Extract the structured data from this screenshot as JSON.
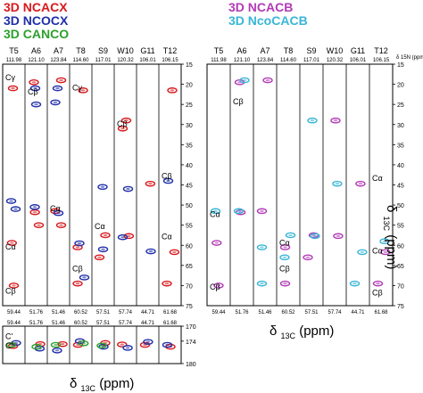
{
  "legend_left": [
    {
      "label": "3D NCACX",
      "color": "#d7191c"
    },
    {
      "label": "3D NCOCX",
      "color": "#1f2fa8"
    },
    {
      "label": "3D CANCO",
      "color": "#2ca02c"
    }
  ],
  "legend_right": [
    {
      "label": "3D NCACB",
      "color": "#b23ab6"
    },
    {
      "label": "3D NcoCACB",
      "color": "#38b6d6"
    }
  ],
  "xlabel_left": {
    "delta": "δ",
    "sub": "13C",
    "unit": "(ppm)"
  },
  "xlabel_right": {
    "delta": "δ",
    "sub": "13C",
    "unit": "(ppm)"
  },
  "ylabel_right": {
    "delta": "δ",
    "sub": "13C",
    "unit": "(ppm)"
  },
  "chart_data": [
    {
      "type": "scatter",
      "panel": "left-aliphatic",
      "strips": [
        {
          "residue": "T5",
          "n_shift": "111.98",
          "ca_shift": "59.44"
        },
        {
          "residue": "A6",
          "n_shift": "121.10",
          "ca_shift": "51.76"
        },
        {
          "residue": "A7",
          "n_shift": "123.84",
          "ca_shift": "51.46"
        },
        {
          "residue": "T8",
          "n_shift": "114.60",
          "ca_shift": "60.52"
        },
        {
          "residue": "S9",
          "n_shift": "117.01",
          "ca_shift": "57.51"
        },
        {
          "residue": "W10",
          "n_shift": "120.32",
          "ca_shift": "57.74"
        },
        {
          "residue": "G11",
          "n_shift": "106.01",
          "ca_shift": "44.71"
        },
        {
          "residue": "T12",
          "n_shift": "106.15",
          "ca_shift": "61.68"
        }
      ],
      "ylim": [
        15,
        75
      ],
      "yticks": [
        15,
        20,
        25,
        30,
        35,
        40,
        45,
        50,
        55,
        60,
        65,
        70,
        75
      ],
      "annotations": [
        {
          "strip": 0,
          "label": "Cγ",
          "y": 19.0
        },
        {
          "strip": 1,
          "label": "Cβ",
          "y": 22.5
        },
        {
          "strip": 3,
          "label": "Cγ",
          "y": 21.5
        },
        {
          "strip": 5,
          "label": "Cβ",
          "y": 30.5
        },
        {
          "strip": 2,
          "label": "Cα",
          "y": 51.5
        },
        {
          "strip": 0,
          "label": "Cα",
          "y": 61.0
        },
        {
          "strip": 4,
          "label": "Cα",
          "y": 56.0
        },
        {
          "strip": 7,
          "label": "Cα",
          "y": 58.5
        },
        {
          "strip": 7,
          "label": "Cβ",
          "y": 43.5
        },
        {
          "strip": 3,
          "label": "Cβ",
          "y": 66.5
        },
        {
          "strip": 0,
          "label": "Cβ",
          "y": 72.0
        }
      ],
      "series": [
        {
          "name": "3D NCACX",
          "points": [
            {
              "strip": 0,
              "y": 21.0
            },
            {
              "strip": 0,
              "y": 59.4
            },
            {
              "strip": 0,
              "y": 70.0
            },
            {
              "strip": 1,
              "y": 19.5
            },
            {
              "strip": 1,
              "y": 51.8
            },
            {
              "strip": 1,
              "y": 55.0
            },
            {
              "strip": 2,
              "y": 19.0
            },
            {
              "strip": 2,
              "y": 51.5
            },
            {
              "strip": 2,
              "y": 55.0
            },
            {
              "strip": 3,
              "y": 21.5
            },
            {
              "strip": 3,
              "y": 60.5
            },
            {
              "strip": 3,
              "y": 69.5
            },
            {
              "strip": 4,
              "y": 57.5
            },
            {
              "strip": 4,
              "y": 63.0
            },
            {
              "strip": 5,
              "y": 31.0
            },
            {
              "strip": 5,
              "y": 57.7
            },
            {
              "strip": 5,
              "y": 29.0
            },
            {
              "strip": 6,
              "y": 44.7
            },
            {
              "strip": 7,
              "y": 21.5
            },
            {
              "strip": 7,
              "y": 61.7
            },
            {
              "strip": 7,
              "y": 69.5
            }
          ]
        },
        {
          "name": "3D NCOCX",
          "points": [
            {
              "strip": 0,
              "y": 51.0
            },
            {
              "strip": 0,
              "y": 49.0
            },
            {
              "strip": 1,
              "y": 21.0
            },
            {
              "strip": 1,
              "y": 25.0
            },
            {
              "strip": 1,
              "y": 50.5
            },
            {
              "strip": 2,
              "y": 21.0
            },
            {
              "strip": 2,
              "y": 24.5
            },
            {
              "strip": 2,
              "y": 52.0
            },
            {
              "strip": 3,
              "y": 59.5
            },
            {
              "strip": 3,
              "y": 68.0
            },
            {
              "strip": 4,
              "y": 45.5
            },
            {
              "strip": 4,
              "y": 61.0
            },
            {
              "strip": 5,
              "y": 58.0
            },
            {
              "strip": 5,
              "y": 46.0
            },
            {
              "strip": 6,
              "y": 61.5
            },
            {
              "strip": 7,
              "y": 44.0
            }
          ]
        }
      ]
    },
    {
      "type": "scatter",
      "panel": "left-carbonyl",
      "strips_ref": "left-aliphatic",
      "ylim": [
        170,
        180
      ],
      "yticks": [
        170,
        174,
        180
      ],
      "annotations": [
        {
          "strip": 0,
          "label": "C'",
          "y": 173.5
        },
        {
          "strip": 0,
          "label": "C'",
          "y": 176.0
        }
      ],
      "series": [
        {
          "name": "3D NCACX",
          "points": [
            {
              "strip": 0,
              "y": 175.3
            },
            {
              "strip": 1,
              "y": 174.8
            },
            {
              "strip": 2,
              "y": 174.8
            },
            {
              "strip": 3,
              "y": 175.0
            },
            {
              "strip": 4,
              "y": 174.5
            },
            {
              "strip": 5,
              "y": 174.9
            },
            {
              "strip": 6,
              "y": 175.0
            },
            {
              "strip": 7,
              "y": 175.5
            }
          ]
        },
        {
          "name": "3D NCOCX",
          "points": [
            {
              "strip": 0,
              "y": 174.5
            },
            {
              "strip": 1,
              "y": 176.0
            },
            {
              "strip": 2,
              "y": 176.5
            },
            {
              "strip": 3,
              "y": 174.0
            },
            {
              "strip": 4,
              "y": 175.5
            },
            {
              "strip": 5,
              "y": 175.8
            },
            {
              "strip": 6,
              "y": 174.2
            },
            {
              "strip": 7,
              "y": 175.0
            }
          ]
        },
        {
          "name": "3D CANCO",
          "points": [
            {
              "strip": 0,
              "y": 175.0
            },
            {
              "strip": 1,
              "y": 175.5
            },
            {
              "strip": 2,
              "y": 175.0
            },
            {
              "strip": 3,
              "y": 174.6
            },
            {
              "strip": 4,
              "y": 175.2
            }
          ]
        }
      ]
    },
    {
      "type": "scatter",
      "panel": "right",
      "strips": [
        {
          "residue": "T5",
          "n_shift": "111.98",
          "ca_shift": "59.44"
        },
        {
          "residue": "A6",
          "n_shift": "121.10",
          "ca_shift": "51.76"
        },
        {
          "residue": "A7",
          "n_shift": "123.84",
          "ca_shift": "51.46"
        },
        {
          "residue": "T8",
          "n_shift": "114.60",
          "ca_shift": "60.52"
        },
        {
          "residue": "S9",
          "n_shift": "117.01",
          "ca_shift": "57.51"
        },
        {
          "residue": "W10",
          "n_shift": "120.32",
          "ca_shift": "57.74"
        },
        {
          "residue": "G11",
          "n_shift": "106.01",
          "ca_shift": "44.71"
        },
        {
          "residue": "T12",
          "n_shift": "106.15",
          "ca_shift": "61.68"
        }
      ],
      "header_unit": "δ 15N (ppm)",
      "ylim": [
        15,
        75
      ],
      "yticks": [
        15,
        20,
        25,
        30,
        35,
        40,
        45,
        50,
        55,
        60,
        65,
        70,
        75
      ],
      "annotations": [
        {
          "strip": 1,
          "label": "Cβ",
          "y": 25.0
        },
        {
          "strip": 7,
          "label": "Cα",
          "y": 44.0
        },
        {
          "strip": 0,
          "label": "Cα",
          "y": 53.0
        },
        {
          "strip": 3,
          "label": "Cα",
          "y": 60.0
        },
        {
          "strip": 3,
          "label": "Cβ",
          "y": 66.5
        },
        {
          "strip": 7,
          "label": "Cα",
          "y": 62.0
        },
        {
          "strip": 0,
          "label": "Cβ",
          "y": 71.0
        },
        {
          "strip": 7,
          "label": "Cβ",
          "y": 72.5
        }
      ],
      "series": [
        {
          "name": "3D NCACB",
          "points": [
            {
              "strip": 0,
              "y": 59.4
            },
            {
              "strip": 0,
              "y": 70.0
            },
            {
              "strip": 1,
              "y": 19.5
            },
            {
              "strip": 1,
              "y": 51.8
            },
            {
              "strip": 2,
              "y": 19.0
            },
            {
              "strip": 2,
              "y": 51.5
            },
            {
              "strip": 3,
              "y": 60.5
            },
            {
              "strip": 3,
              "y": 69.5
            },
            {
              "strip": 4,
              "y": 57.5
            },
            {
              "strip": 4,
              "y": 63.0
            },
            {
              "strip": 5,
              "y": 57.7
            },
            {
              "strip": 5,
              "y": 29.0
            },
            {
              "strip": 6,
              "y": 44.7
            },
            {
              "strip": 7,
              "y": 61.7
            },
            {
              "strip": 7,
              "y": 69.5
            }
          ]
        },
        {
          "name": "3D NcoCACB",
          "points": [
            {
              "strip": 0,
              "y": 51.5
            },
            {
              "strip": 1,
              "y": 19.0
            },
            {
              "strip": 1,
              "y": 51.5
            },
            {
              "strip": 2,
              "y": 60.5
            },
            {
              "strip": 2,
              "y": 69.5
            },
            {
              "strip": 3,
              "y": 57.5
            },
            {
              "strip": 3,
              "y": 63.0
            },
            {
              "strip": 4,
              "y": 57.7
            },
            {
              "strip": 4,
              "y": 29.0
            },
            {
              "strip": 5,
              "y": 44.7
            },
            {
              "strip": 6,
              "y": 61.7
            },
            {
              "strip": 6,
              "y": 69.5
            },
            {
              "strip": 7,
              "y": 59.0
            }
          ]
        }
      ]
    }
  ]
}
